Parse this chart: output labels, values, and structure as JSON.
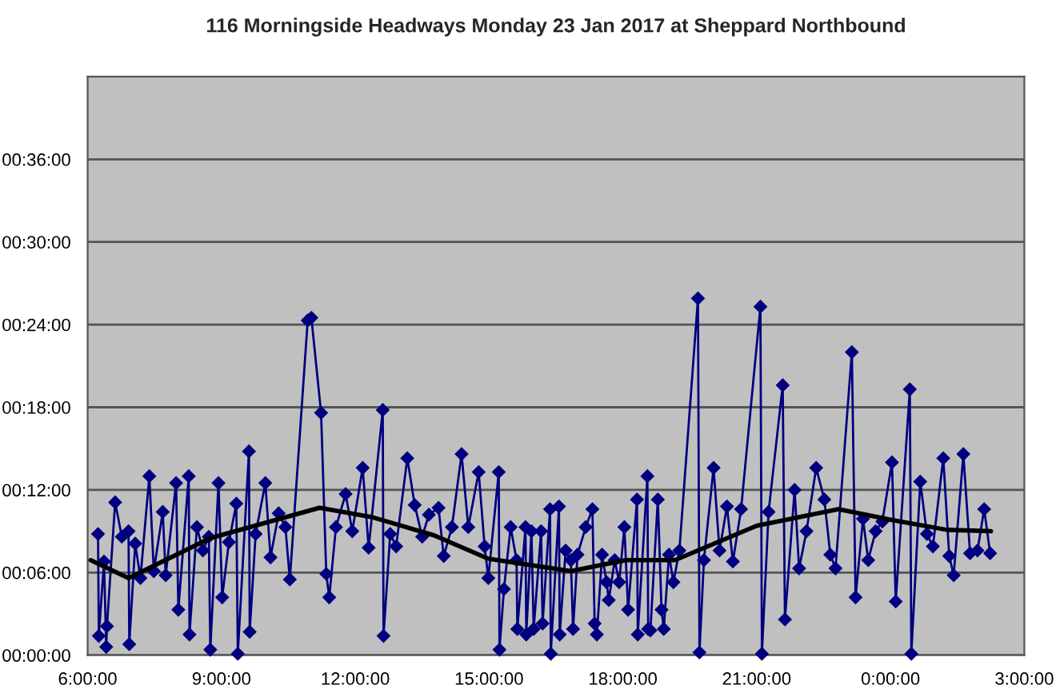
{
  "chart_data": {
    "type": "line",
    "title": "116 Morningside Headways Monday 23 Jan 2017 at Sheppard Northbound",
    "series": [
      {
        "color": "#000080",
        "marker": "diamond",
        "x": [
          "2017-01-23T06:14",
          "2017-01-23T06:15",
          "2017-01-23T06:22",
          "2017-01-23T06:25",
          "2017-01-23T06:26",
          "2017-01-23T06:37",
          "2017-01-23T06:46",
          "2017-01-23T06:55",
          "2017-01-23T06:56",
          "2017-01-23T07:04",
          "2017-01-23T07:11",
          "2017-01-23T07:23",
          "2017-01-23T07:29",
          "2017-01-23T07:41",
          "2017-01-23T07:45",
          "2017-01-23T07:59",
          "2017-01-23T08:02",
          "2017-01-23T08:16",
          "2017-01-23T08:17",
          "2017-01-23T08:27",
          "2017-01-23T08:35",
          "2017-01-23T08:43",
          "2017-01-23T08:45",
          "2017-01-23T08:56",
          "2017-01-23T09:01",
          "2017-01-23T09:10",
          "2017-01-23T09:20",
          "2017-01-23T09:22",
          "2017-01-23T09:37",
          "2017-01-23T09:38",
          "2017-01-23T09:46",
          "2017-01-23T09:59",
          "2017-01-23T10:06",
          "2017-01-23T10:17",
          "2017-01-23T10:26",
          "2017-01-23T10:32",
          "2017-01-23T10:56",
          "2017-01-23T11:01",
          "2017-01-23T11:14",
          "2017-01-23T11:21",
          "2017-01-23T11:25",
          "2017-01-23T11:34",
          "2017-01-23T11:47",
          "2017-01-23T11:56",
          "2017-01-23T12:10",
          "2017-01-23T12:18",
          "2017-01-23T12:37",
          "2017-01-23T12:38",
          "2017-01-23T12:47",
          "2017-01-23T12:55",
          "2017-01-23T13:10",
          "2017-01-23T13:20",
          "2017-01-23T13:30",
          "2017-01-23T13:39",
          "2017-01-23T13:52",
          "2017-01-23T13:59",
          "2017-01-23T14:10",
          "2017-01-23T14:23",
          "2017-01-23T14:32",
          "2017-01-23T14:46",
          "2017-01-23T14:54",
          "2017-01-23T14:59",
          "2017-01-23T15:13",
          "2017-01-23T15:14",
          "2017-01-23T15:20",
          "2017-01-23T15:29",
          "2017-01-23T15:37",
          "2017-01-23T15:38",
          "2017-01-23T15:49",
          "2017-01-23T15:50",
          "2017-01-23T15:57",
          "2017-01-23T16:00",
          "2017-01-23T16:10",
          "2017-01-23T16:12",
          "2017-01-23T16:22",
          "2017-01-23T16:23",
          "2017-01-23T16:34",
          "2017-01-23T16:35",
          "2017-01-23T16:43",
          "2017-01-23T16:50",
          "2017-01-23T16:53",
          "2017-01-23T16:59",
          "2017-01-23T17:10",
          "2017-01-23T17:19",
          "2017-01-23T17:22",
          "2017-01-23T17:25",
          "2017-01-23T17:32",
          "2017-01-23T17:38",
          "2017-01-23T17:41",
          "2017-01-23T17:49",
          "2017-01-23T17:55",
          "2017-01-23T18:02",
          "2017-01-23T18:07",
          "2017-01-23T18:19",
          "2017-01-23T18:20",
          "2017-01-23T18:33",
          "2017-01-23T18:34",
          "2017-01-23T18:37",
          "2017-01-23T18:47",
          "2017-01-23T18:52",
          "2017-01-23T18:55",
          "2017-01-23T19:02",
          "2017-01-23T19:08",
          "2017-01-23T19:16",
          "2017-01-23T19:41",
          "2017-01-23T19:43",
          "2017-01-23T19:49",
          "2017-01-23T20:02",
          "2017-01-23T20:10",
          "2017-01-23T20:20",
          "2017-01-23T20:28",
          "2017-01-23T20:39",
          "2017-01-23T21:05",
          "2017-01-23T21:07",
          "2017-01-23T21:16",
          "2017-01-23T21:35",
          "2017-01-23T21:38",
          "2017-01-23T21:51",
          "2017-01-23T21:57",
          "2017-01-23T22:07",
          "2017-01-23T22:20",
          "2017-01-23T22:31",
          "2017-01-23T22:39",
          "2017-01-23T22:46",
          "2017-01-23T23:08",
          "2017-01-23T23:13",
          "2017-01-23T23:23",
          "2017-01-23T23:30",
          "2017-01-23T23:40",
          "2017-01-23T23:49",
          "2017-01-24T00:02",
          "2017-01-24T00:07",
          "2017-01-24T00:26",
          "2017-01-24T00:28",
          "2017-01-24T00:40",
          "2017-01-24T00:49",
          "2017-01-24T00:57",
          "2017-01-24T01:11",
          "2017-01-24T01:19",
          "2017-01-24T01:25",
          "2017-01-24T01:38",
          "2017-01-24T01:47",
          "2017-01-24T01:57",
          "2017-01-24T02:06",
          "2017-01-24T02:14"
        ],
        "values": [
          8.8,
          1.4,
          6.8,
          0.6,
          2.1,
          11.1,
          8.6,
          9.0,
          0.8,
          8.1,
          5.6,
          13.0,
          6.1,
          10.4,
          5.8,
          12.5,
          3.3,
          13.0,
          1.5,
          9.3,
          7.6,
          8.6,
          0.4,
          12.5,
          4.2,
          8.2,
          11.0,
          0.1,
          14.8,
          1.7,
          8.8,
          12.5,
          7.1,
          10.3,
          9.3,
          5.5,
          24.3,
          24.5,
          17.6,
          5.9,
          4.2,
          9.3,
          11.7,
          9.0,
          13.6,
          7.8,
          17.8,
          1.4,
          8.8,
          7.9,
          14.3,
          10.9,
          8.6,
          10.2,
          10.7,
          7.2,
          9.3,
          14.6,
          9.3,
          13.3,
          7.9,
          5.6,
          13.3,
          0.4,
          4.8,
          9.3,
          6.9,
          1.9,
          9.3,
          1.5,
          9.0,
          1.9,
          9.0,
          2.3,
          10.6,
          0.1,
          10.8,
          1.5,
          7.6,
          6.9,
          1.9,
          7.3,
          9.3,
          10.6,
          2.3,
          1.5,
          7.3,
          5.3,
          4.0,
          6.9,
          5.3,
          9.3,
          3.3,
          11.3,
          1.5,
          13.0,
          1.9,
          1.8,
          11.3,
          3.3,
          1.9,
          7.3,
          5.3,
          7.6,
          25.9,
          0.2,
          6.9,
          13.6,
          7.6,
          10.8,
          6.8,
          10.6,
          25.3,
          0.1,
          10.4,
          19.6,
          2.6,
          12.0,
          6.3,
          9.0,
          13.6,
          11.3,
          7.3,
          6.3,
          22.0,
          4.2,
          9.9,
          6.9,
          9.0,
          9.7,
          14.0,
          3.9,
          19.3,
          0.1,
          12.6,
          8.8,
          7.9,
          14.3,
          7.2,
          5.8,
          14.6,
          7.4,
          7.6,
          10.6,
          7.4
        ]
      },
      {
        "color": "#000000",
        "x": [
          "2017-01-23T06:04",
          "2017-01-23T06:55",
          "2017-01-23T08:45",
          "2017-01-23T11:12",
          "2017-01-23T12:24",
          "2017-01-23T13:46",
          "2017-01-23T14:59",
          "2017-01-23T16:50",
          "2017-01-23T18:04",
          "2017-01-23T19:10",
          "2017-01-23T21:00",
          "2017-01-23T22:50",
          "2017-01-24T00:03",
          "2017-01-24T01:16",
          "2017-01-24T02:15"
        ],
        "values": [
          6.9,
          5.6,
          8.5,
          10.7,
          10.0,
          8.7,
          7.0,
          6.1,
          6.9,
          6.9,
          9.4,
          10.6,
          9.8,
          9.1,
          9.0
        ]
      }
    ],
    "xlim": [
      "2017-01-23T06:00",
      "2017-01-24T03:00"
    ],
    "xticks": [
      {
        "value": "2017-01-23T06:00",
        "label": "6:00:00"
      },
      {
        "value": "2017-01-23T09:00",
        "label": "9:00:00"
      },
      {
        "value": "2017-01-23T12:00",
        "label": "12:00:00"
      },
      {
        "value": "2017-01-23T15:00",
        "label": "15:00:00"
      },
      {
        "value": "2017-01-23T18:00",
        "label": "18:00:00"
      },
      {
        "value": "2017-01-23T21:00",
        "label": "21:00:00"
      },
      {
        "value": "2017-01-24T00:00",
        "label": "0:00:00"
      },
      {
        "value": "2017-01-24T03:00",
        "label": "3:00:00"
      }
    ],
    "ylim": [
      0,
      42
    ],
    "yticks": [
      {
        "value": 0,
        "label": "00:00:00"
      },
      {
        "value": 6,
        "label": "00:06:00"
      },
      {
        "value": 12,
        "label": "00:12:00"
      },
      {
        "value": 18,
        "label": "00:18:00"
      },
      {
        "value": 24,
        "label": "00:24:00"
      },
      {
        "value": 30,
        "label": "00:30:00"
      },
      {
        "value": 36,
        "label": "00:36:00"
      }
    ],
    "grid": "y"
  }
}
